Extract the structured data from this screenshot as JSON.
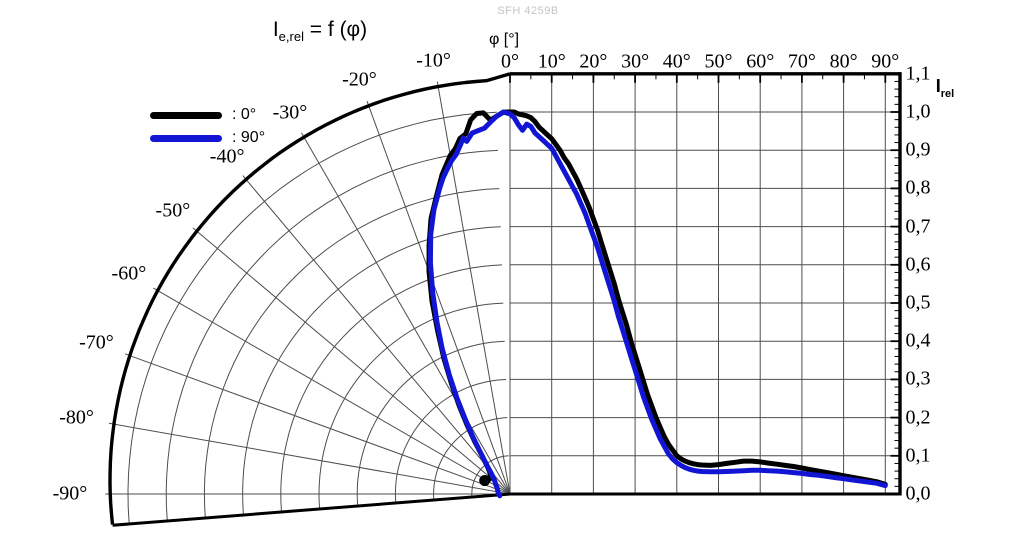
{
  "watermark": "SFH 4259B",
  "title": {
    "base": "I",
    "sub": "e,rel",
    "rest": " = f (φ)"
  },
  "top_axis": {
    "label": "φ [°]",
    "tick_labels": [
      "0°",
      "10°",
      "20°",
      "30°",
      "40°",
      "50°",
      "60°",
      "70°",
      "80°",
      "90°"
    ]
  },
  "polar_axis": {
    "tick_labels": [
      "-10°",
      "-20°",
      "-30°",
      "-40°",
      "-50°",
      "-60°",
      "-70°",
      "-80°",
      "-90°"
    ]
  },
  "right_axis": {
    "label_base": "I",
    "label_sub": "rel",
    "tick_labels": [
      "0,0",
      "0,1",
      "0,2",
      "0,3",
      "0,4",
      "0,5",
      "0,6",
      "0,7",
      "0,8",
      "0,9",
      "1,0",
      "1,1"
    ]
  },
  "legend": [
    {
      "label": ": 0°",
      "color": "#000000"
    },
    {
      "label": ": 90°",
      "color": "#1216d4"
    }
  ],
  "colors": {
    "grid": "#4d4d4d",
    "frame": "#000000",
    "watermark": "#c4c4c4",
    "curve_0deg": "#000000",
    "curve_90deg": "#1216d4"
  },
  "chart_data": {
    "type": "line",
    "layout": "half-polar (left, -90°..0°) merged with cartesian (right, 0°..90°)",
    "title": "I_e,rel = f (φ)",
    "xlabel": "φ [°]",
    "ylabel": "I_rel",
    "angle_range_deg": [
      -90,
      90
    ],
    "r_range": [
      0.0,
      1.1
    ],
    "r_grid_step": 0.1,
    "angle_grid_step_deg": 10,
    "legend_position": "top-left",
    "series": [
      {
        "name": "0°",
        "color": "#000000",
        "points": [
          [
            -62,
            0.075
          ],
          [
            -58,
            0.069
          ],
          [
            -54,
            0.066
          ],
          [
            -50,
            0.066
          ],
          [
            -46,
            0.07
          ],
          [
            -43,
            0.078
          ],
          [
            -40,
            0.09
          ],
          [
            -38,
            0.105
          ],
          [
            -36,
            0.125
          ],
          [
            -34,
            0.165
          ],
          [
            -32,
            0.21
          ],
          [
            -30,
            0.265
          ],
          [
            -28,
            0.325
          ],
          [
            -26,
            0.395
          ],
          [
            -24,
            0.465
          ],
          [
            -22,
            0.545
          ],
          [
            -20,
            0.62
          ],
          [
            -18,
            0.685
          ],
          [
            -16,
            0.75
          ],
          [
            -14,
            0.8
          ],
          [
            -12,
            0.855
          ],
          [
            -10,
            0.9
          ],
          [
            -9,
            0.915
          ],
          [
            -8,
            0.94
          ],
          [
            -7,
            0.95
          ],
          [
            -6,
            0.985
          ],
          [
            -5,
            1
          ],
          [
            -4,
            1
          ],
          [
            -3,
            0.98
          ],
          [
            -2,
            0.99
          ],
          [
            -1,
            1
          ],
          [
            0,
            1
          ],
          [
            1,
            1
          ],
          [
            2,
            0.995
          ],
          [
            4,
            0.99
          ],
          [
            5,
            0.985
          ],
          [
            6,
            0.975
          ],
          [
            7,
            0.96
          ],
          [
            8,
            0.95
          ],
          [
            9,
            0.94
          ],
          [
            10,
            0.93
          ],
          [
            11,
            0.915
          ],
          [
            12,
            0.9
          ],
          [
            13,
            0.88
          ],
          [
            14,
            0.865
          ],
          [
            15,
            0.845
          ],
          [
            16,
            0.825
          ],
          [
            17,
            0.8
          ],
          [
            18,
            0.775
          ],
          [
            19,
            0.75
          ],
          [
            20,
            0.72
          ],
          [
            21,
            0.69
          ],
          [
            22,
            0.655
          ],
          [
            23,
            0.62
          ],
          [
            24,
            0.585
          ],
          [
            25,
            0.55
          ],
          [
            26,
            0.51
          ],
          [
            27,
            0.475
          ],
          [
            28,
            0.44
          ],
          [
            29,
            0.4
          ],
          [
            30,
            0.365
          ],
          [
            31,
            0.33
          ],
          [
            32,
            0.295
          ],
          [
            33,
            0.26
          ],
          [
            34,
            0.23
          ],
          [
            35,
            0.2
          ],
          [
            36,
            0.175
          ],
          [
            37,
            0.15
          ],
          [
            38,
            0.13
          ],
          [
            39,
            0.115
          ],
          [
            40,
            0.1
          ],
          [
            41,
            0.092
          ],
          [
            42,
            0.086
          ],
          [
            43,
            0.082
          ],
          [
            44,
            0.079
          ],
          [
            45,
            0.077
          ],
          [
            46,
            0.076
          ],
          [
            48,
            0.075
          ],
          [
            50,
            0.077
          ],
          [
            52,
            0.08
          ],
          [
            54,
            0.083
          ],
          [
            56,
            0.086
          ],
          [
            58,
            0.086
          ],
          [
            60,
            0.084
          ],
          [
            62,
            0.081
          ],
          [
            64,
            0.078
          ],
          [
            66,
            0.075
          ],
          [
            68,
            0.072
          ],
          [
            70,
            0.068
          ],
          [
            72,
            0.064
          ],
          [
            74,
            0.06
          ],
          [
            76,
            0.056
          ],
          [
            78,
            0.052
          ],
          [
            80,
            0.048
          ],
          [
            82,
            0.044
          ],
          [
            84,
            0.04
          ],
          [
            86,
            0.036
          ],
          [
            88,
            0.032
          ],
          [
            90,
            0.025
          ]
        ]
      },
      {
        "name": "90°",
        "color": "#1216d4",
        "points": [
          [
            -100,
            0.027
          ],
          [
            -88,
            0.03
          ],
          [
            -76,
            0.033
          ],
          [
            -64,
            0.038
          ],
          [
            -56,
            0.045
          ],
          [
            -50,
            0.052
          ],
          [
            -46,
            0.06
          ],
          [
            -43,
            0.07
          ],
          [
            -41,
            0.08
          ],
          [
            -39,
            0.095
          ],
          [
            -37,
            0.115
          ],
          [
            -35,
            0.14
          ],
          [
            -33,
            0.18
          ],
          [
            -31,
            0.225
          ],
          [
            -29,
            0.285
          ],
          [
            -27,
            0.35
          ],
          [
            -25,
            0.42
          ],
          [
            -23,
            0.49
          ],
          [
            -21,
            0.565
          ],
          [
            -19,
            0.64
          ],
          [
            -17,
            0.71
          ],
          [
            -15,
            0.77
          ],
          [
            -13,
            0.82
          ],
          [
            -12,
            0.845
          ],
          [
            -11,
            0.865
          ],
          [
            -10,
            0.885
          ],
          [
            -9,
            0.9
          ],
          [
            -8,
            0.925
          ],
          [
            -7.5,
            0.94
          ],
          [
            -7,
            0.93
          ],
          [
            -6,
            0.95
          ],
          [
            -5,
            0.955
          ],
          [
            -4,
            0.96
          ],
          [
            -3,
            0.975
          ],
          [
            -2,
            0.99
          ],
          [
            -1,
            1
          ],
          [
            0,
            0.995
          ],
          [
            1,
            0.985
          ],
          [
            2,
            0.967
          ],
          [
            3,
            0.952
          ],
          [
            4,
            0.968
          ],
          [
            5,
            0.962
          ],
          [
            6,
            0.945
          ],
          [
            7,
            0.935
          ],
          [
            8,
            0.925
          ],
          [
            9,
            0.915
          ],
          [
            10,
            0.905
          ],
          [
            11,
            0.885
          ],
          [
            12,
            0.865
          ],
          [
            13,
            0.845
          ],
          [
            14,
            0.825
          ],
          [
            15,
            0.805
          ],
          [
            16,
            0.785
          ],
          [
            17,
            0.76
          ],
          [
            18,
            0.735
          ],
          [
            19,
            0.705
          ],
          [
            20,
            0.675
          ],
          [
            21,
            0.645
          ],
          [
            22,
            0.61
          ],
          [
            23,
            0.575
          ],
          [
            24,
            0.54
          ],
          [
            25,
            0.505
          ],
          [
            26,
            0.465
          ],
          [
            27,
            0.43
          ],
          [
            28,
            0.395
          ],
          [
            29,
            0.36
          ],
          [
            30,
            0.325
          ],
          [
            31,
            0.29
          ],
          [
            32,
            0.255
          ],
          [
            33,
            0.225
          ],
          [
            34,
            0.195
          ],
          [
            35,
            0.17
          ],
          [
            36,
            0.145
          ],
          [
            37,
            0.125
          ],
          [
            38,
            0.105
          ],
          [
            39,
            0.092
          ],
          [
            40,
            0.082
          ],
          [
            41,
            0.075
          ],
          [
            42,
            0.069
          ],
          [
            43,
            0.065
          ],
          [
            44,
            0.062
          ],
          [
            45,
            0.06
          ],
          [
            46,
            0.059
          ],
          [
            48,
            0.058
          ],
          [
            50,
            0.058
          ],
          [
            52,
            0.059
          ],
          [
            54,
            0.06
          ],
          [
            56,
            0.061
          ],
          [
            58,
            0.062
          ],
          [
            60,
            0.062
          ],
          [
            62,
            0.061
          ],
          [
            64,
            0.06
          ],
          [
            66,
            0.058
          ],
          [
            68,
            0.056
          ],
          [
            70,
            0.054
          ],
          [
            72,
            0.051
          ],
          [
            74,
            0.049
          ],
          [
            76,
            0.046
          ],
          [
            78,
            0.043
          ],
          [
            80,
            0.04
          ],
          [
            82,
            0.037
          ],
          [
            84,
            0.034
          ],
          [
            86,
            0.031
          ],
          [
            88,
            0.028
          ],
          [
            90,
            0.022
          ]
        ]
      }
    ],
    "end_dot": {
      "series": "0°",
      "angle_deg": -62,
      "value": 0.075
    }
  }
}
